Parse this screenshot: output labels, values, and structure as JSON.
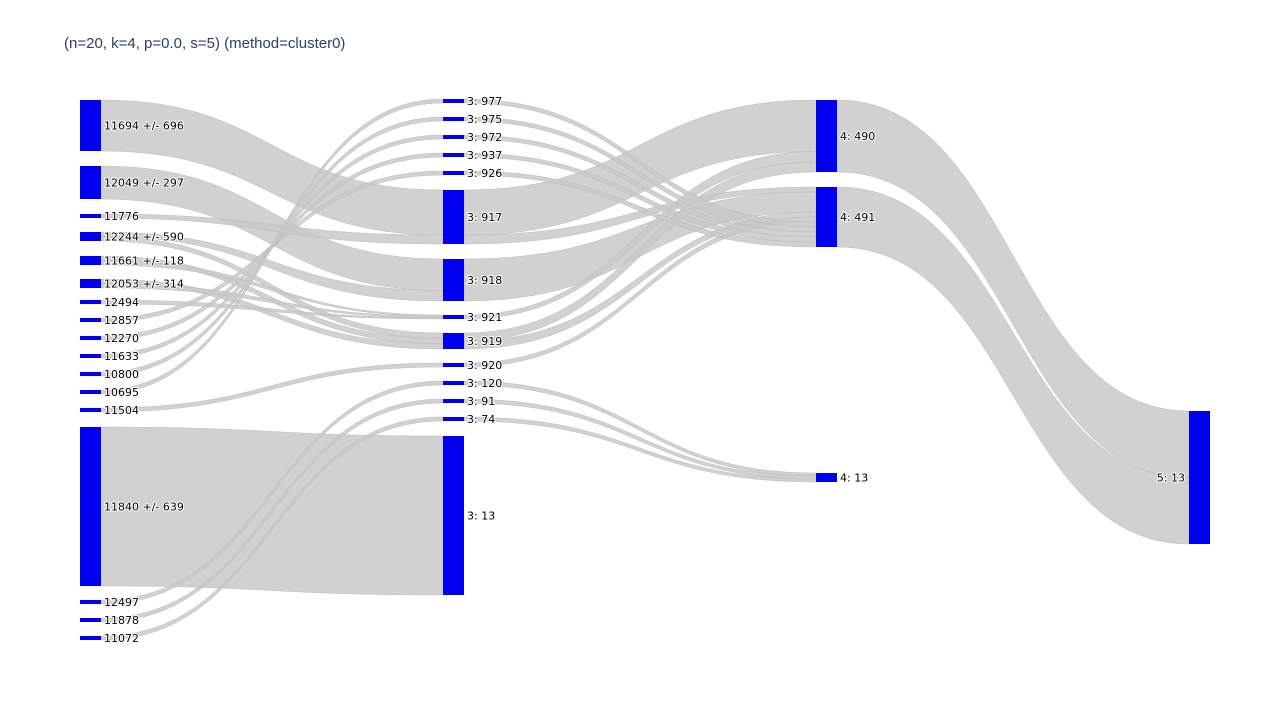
{
  "title": "(n=20, k=4, p=0.0, s=5) (method=cluster0)",
  "colors": {
    "node": "#0000ee",
    "link": "#c9c9c9",
    "title": "#2a3f5f"
  },
  "chart_data": {
    "type": "sankey",
    "nodes": [
      {
        "id": "c0",
        "label": "11694 +/- 696",
        "column": 0,
        "size": 5
      },
      {
        "id": "c1",
        "label": "12049 +/- 297",
        "column": 0,
        "size": 3
      },
      {
        "id": "c2",
        "label": "11776",
        "column": 0,
        "size": 1
      },
      {
        "id": "c3",
        "label": "12244 +/- 590",
        "column": 0,
        "size": 2
      },
      {
        "id": "c4",
        "label": "11661 +/- 118",
        "column": 0,
        "size": 2
      },
      {
        "id": "c5",
        "label": "12053 +/- 314",
        "column": 0,
        "size": 2
      },
      {
        "id": "c6",
        "label": "12494",
        "column": 0,
        "size": 1
      },
      {
        "id": "c7",
        "label": "12857",
        "column": 0,
        "size": 1
      },
      {
        "id": "c8",
        "label": "12270",
        "column": 0,
        "size": 1
      },
      {
        "id": "c9",
        "label": "11633",
        "column": 0,
        "size": 1
      },
      {
        "id": "c10",
        "label": "10800",
        "column": 0,
        "size": 1
      },
      {
        "id": "c11",
        "label": "10695",
        "column": 0,
        "size": 1
      },
      {
        "id": "c12",
        "label": "11504",
        "column": 0,
        "size": 1
      },
      {
        "id": "c13",
        "label": "11840 +/- 639",
        "column": 0,
        "size": 16
      },
      {
        "id": "c14",
        "label": "12497",
        "column": 0,
        "size": 1
      },
      {
        "id": "c15",
        "label": "11878",
        "column": 0,
        "size": 1
      },
      {
        "id": "c16",
        "label": "11072",
        "column": 0,
        "size": 1
      },
      {
        "id": "m977",
        "label": "3: 977",
        "column": 1,
        "size": 1
      },
      {
        "id": "m975",
        "label": "3: 975",
        "column": 1,
        "size": 1
      },
      {
        "id": "m972",
        "label": "3: 972",
        "column": 1,
        "size": 1
      },
      {
        "id": "m937",
        "label": "3: 937",
        "column": 1,
        "size": 1
      },
      {
        "id": "m926",
        "label": "3: 926",
        "column": 1,
        "size": 1
      },
      {
        "id": "m917",
        "label": "3: 917",
        "column": 1,
        "size": 6
      },
      {
        "id": "m918",
        "label": "3: 918",
        "column": 1,
        "size": 4
      },
      {
        "id": "m921",
        "label": "3: 921",
        "column": 1,
        "size": 1
      },
      {
        "id": "m919",
        "label": "3: 919",
        "column": 1,
        "size": 2
      },
      {
        "id": "m920",
        "label": "3: 920",
        "column": 1,
        "size": 1
      },
      {
        "id": "m120",
        "label": "3: 120",
        "column": 1,
        "size": 1
      },
      {
        "id": "m91",
        "label": "3: 91",
        "column": 1,
        "size": 1
      },
      {
        "id": "m74",
        "label": "3: 74",
        "column": 1,
        "size": 1
      },
      {
        "id": "m13",
        "label": "3: 13",
        "column": 1,
        "size": 16
      },
      {
        "id": "r490",
        "label": "4: 490",
        "column": 2,
        "size": 7
      },
      {
        "id": "r491",
        "label": "4: 491",
        "column": 2,
        "size": 7
      },
      {
        "id": "r13",
        "label": "4: 13",
        "column": 2,
        "size": 1
      },
      {
        "id": "f13",
        "label": "5: 13",
        "column": 3,
        "size": 14
      }
    ],
    "links": [
      {
        "source": "c0",
        "target": "m917",
        "value": 5
      },
      {
        "source": "c1",
        "target": "m918",
        "value": 3
      },
      {
        "source": "c2",
        "target": "m917",
        "value": 1
      },
      {
        "source": "c3",
        "target": "m918",
        "value": 1
      },
      {
        "source": "c3",
        "target": "m919",
        "value": 1
      },
      {
        "source": "c4",
        "target": "m919",
        "value": 1
      },
      {
        "source": "c4",
        "target": "m921",
        "value": 1
      },
      {
        "source": "c5",
        "target": "m919",
        "value": 1
      },
      {
        "source": "c5",
        "target": "m921",
        "value": 1
      },
      {
        "source": "c6",
        "target": "m921",
        "value": 1
      },
      {
        "source": "c7",
        "target": "m926",
        "value": 1
      },
      {
        "source": "c8",
        "target": "m937",
        "value": 1
      },
      {
        "source": "c9",
        "target": "m972",
        "value": 1
      },
      {
        "source": "c10",
        "target": "m975",
        "value": 1
      },
      {
        "source": "c11",
        "target": "m977",
        "value": 1
      },
      {
        "source": "c12",
        "target": "m920",
        "value": 1
      },
      {
        "source": "c13",
        "target": "m13",
        "value": 16
      },
      {
        "source": "c14",
        "target": "m120",
        "value": 1
      },
      {
        "source": "c15",
        "target": "m91",
        "value": 1
      },
      {
        "source": "c16",
        "target": "m74",
        "value": 1
      },
      {
        "source": "m917",
        "target": "r490",
        "value": 5
      },
      {
        "source": "m917",
        "target": "r491",
        "value": 1
      },
      {
        "source": "m918",
        "target": "r491",
        "value": 4
      },
      {
        "source": "m921",
        "target": "r490",
        "value": 1
      },
      {
        "source": "m919",
        "target": "r490",
        "value": 1
      },
      {
        "source": "m919",
        "target": "r491",
        "value": 1
      },
      {
        "source": "m920",
        "target": "r491",
        "value": 1
      },
      {
        "source": "m977",
        "target": "r491",
        "value": 1
      },
      {
        "source": "m975",
        "target": "r491",
        "value": 1
      },
      {
        "source": "m972",
        "target": "r491",
        "value": 1
      },
      {
        "source": "m937",
        "target": "r491",
        "value": 1
      },
      {
        "source": "m926",
        "target": "r491",
        "value": 1
      },
      {
        "source": "m120",
        "target": "r13",
        "value": 1
      },
      {
        "source": "m91",
        "target": "r13",
        "value": 1
      },
      {
        "source": "m74",
        "target": "r13",
        "value": 1
      },
      {
        "source": "r490",
        "target": "f13",
        "value": 7
      },
      {
        "source": "r491",
        "target": "f13",
        "value": 7
      }
    ]
  }
}
